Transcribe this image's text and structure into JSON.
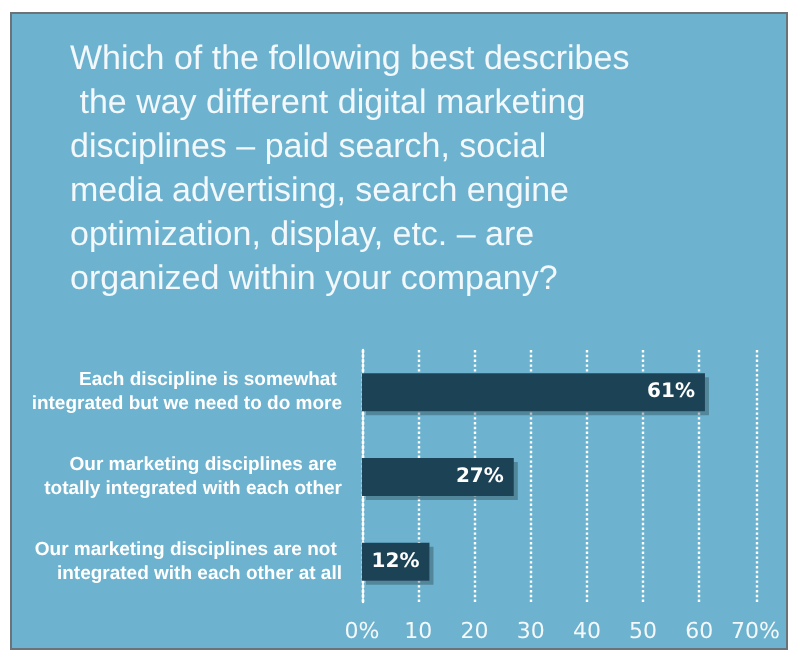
{
  "chart_data": {
    "type": "bar",
    "orientation": "horizontal",
    "title": "Which of the following best describes the way different digital marketing disciplines – paid search, social media advertising, search engine optimization, display, etc. – are organized within your company?",
    "categories": [
      "Each discipline is somewhat integrated but we need to do more",
      "Our marketing disciplines are totally integrated with each other",
      "Our marketing disciplines are not integrated with each other at all"
    ],
    "values": [
      61,
      27,
      12
    ],
    "value_labels": [
      "61%",
      "27%",
      "12%"
    ],
    "color": "#1f4256",
    "xlim": [
      0,
      70
    ],
    "xticks": [
      {
        "value": 0,
        "label": "0%"
      },
      10,
      20,
      30,
      40,
      50,
      60,
      {
        "value": 70,
        "label": "70%"
      }
    ],
    "grid": "x"
  }
}
